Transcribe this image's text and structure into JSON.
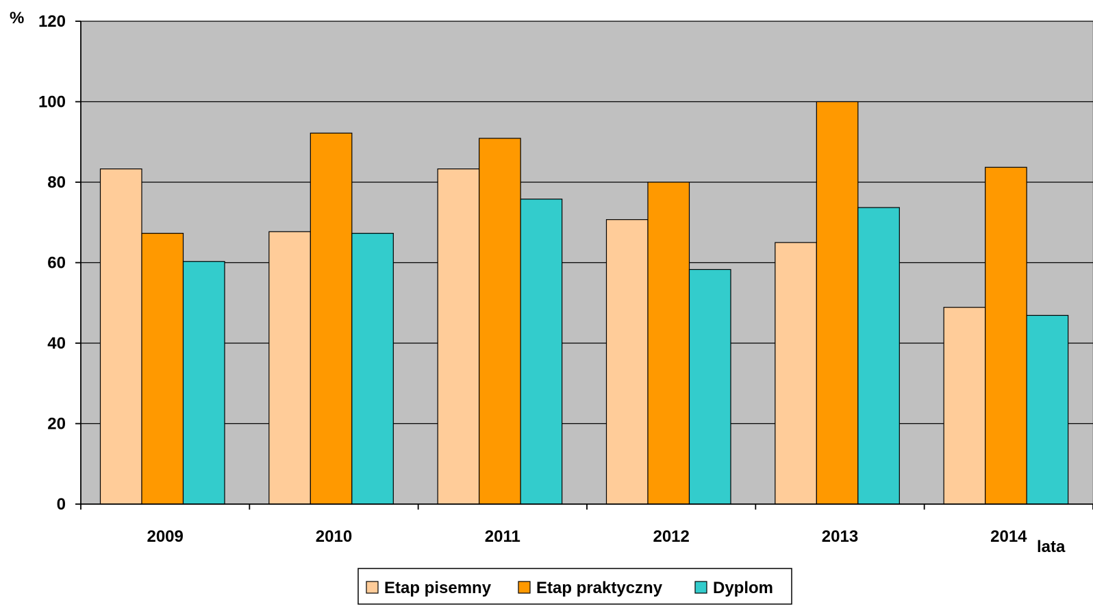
{
  "chart_data": {
    "type": "bar",
    "categories": [
      "2009",
      "2010",
      "2011",
      "2012",
      "2013",
      "2014"
    ],
    "series": [
      {
        "name": "Etap pisemny",
        "color": "#FFCC99",
        "values": [
          83.3,
          67.7,
          83.3,
          70.7,
          65.0,
          48.9
        ]
      },
      {
        "name": "Etap praktyczny",
        "color": "#FF9900",
        "values": [
          67.3,
          92.2,
          90.9,
          80.0,
          100.0,
          83.7
        ]
      },
      {
        "name": "Dyplom",
        "color": "#33CCCC",
        "values": [
          60.3,
          67.3,
          75.8,
          58.3,
          73.7,
          46.9
        ]
      }
    ],
    "yticks": [
      "0",
      "20",
      "40",
      "60",
      "80",
      "100",
      "120"
    ],
    "ylim": [
      0,
      120
    ],
    "ylabel": "%",
    "xlabel": "lata",
    "grid": true,
    "plot_background": "#C0C0C0",
    "legend_position": "bottom"
  }
}
